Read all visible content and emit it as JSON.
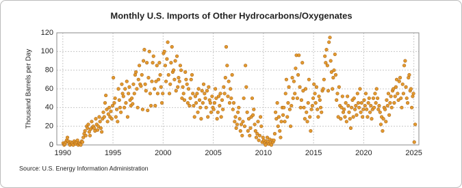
{
  "chart_data": {
    "type": "scatter",
    "title": "Monthly U.S. Imports of Other Hydrocarbons/Oxygenates",
    "ylabel": "Thousand Barrels per Day",
    "source": "Source: U.S. Energy Information Administration",
    "color": "#e39a2f",
    "edge_color": "#a8651a",
    "grid": true,
    "xlim": [
      1989.4,
      2025.5
    ],
    "ylim": [
      0,
      120
    ],
    "xticks": [
      1990,
      1995,
      2000,
      2005,
      2010,
      2015,
      2020,
      2025
    ],
    "yticks": [
      0,
      20,
      40,
      60,
      80,
      100,
      120
    ],
    "x": [
      1990.04,
      1990.13,
      1990.21,
      1990.29,
      1990.38,
      1990.46,
      1990.54,
      1990.63,
      1990.71,
      1990.79,
      1990.88,
      1990.96,
      1991.04,
      1991.13,
      1991.21,
      1991.29,
      1991.38,
      1991.46,
      1991.54,
      1991.63,
      1991.71,
      1991.79,
      1991.88,
      1991.96,
      1992.04,
      1992.13,
      1992.21,
      1992.29,
      1992.38,
      1992.46,
      1992.54,
      1992.63,
      1992.71,
      1992.79,
      1992.88,
      1992.96,
      1993.04,
      1993.13,
      1993.21,
      1993.29,
      1993.38,
      1993.46,
      1993.54,
      1993.63,
      1993.71,
      1993.79,
      1993.88,
      1993.96,
      1994.04,
      1994.13,
      1994.21,
      1994.29,
      1994.38,
      1994.46,
      1994.54,
      1994.63,
      1994.71,
      1994.79,
      1994.88,
      1994.96,
      1995.04,
      1995.13,
      1995.21,
      1995.29,
      1995.38,
      1995.46,
      1995.54,
      1995.63,
      1995.71,
      1995.79,
      1995.88,
      1995.96,
      1996.04,
      1996.13,
      1996.21,
      1996.29,
      1996.38,
      1996.46,
      1996.54,
      1996.63,
      1996.71,
      1996.79,
      1996.88,
      1996.96,
      1997.04,
      1997.13,
      1997.21,
      1997.29,
      1997.38,
      1997.46,
      1997.54,
      1997.63,
      1997.71,
      1997.79,
      1997.88,
      1997.96,
      1998.04,
      1998.13,
      1998.21,
      1998.29,
      1998.38,
      1998.46,
      1998.54,
      1998.63,
      1998.71,
      1998.79,
      1998.88,
      1998.96,
      1999.04,
      1999.13,
      1999.21,
      1999.29,
      1999.38,
      1999.46,
      1999.54,
      1999.63,
      1999.71,
      1999.79,
      1999.88,
      1999.96,
      2000.04,
      2000.13,
      2000.21,
      2000.29,
      2000.38,
      2000.46,
      2000.54,
      2000.63,
      2000.71,
      2000.79,
      2000.88,
      2000.96,
      2001.04,
      2001.13,
      2001.21,
      2001.29,
      2001.38,
      2001.46,
      2001.54,
      2001.63,
      2001.71,
      2001.79,
      2001.88,
      2001.96,
      2002.04,
      2002.13,
      2002.21,
      2002.29,
      2002.38,
      2002.46,
      2002.54,
      2002.63,
      2002.71,
      2002.79,
      2002.88,
      2002.96,
      2003.04,
      2003.13,
      2003.21,
      2003.29,
      2003.38,
      2003.46,
      2003.54,
      2003.63,
      2003.71,
      2003.79,
      2003.88,
      2003.96,
      2004.04,
      2004.13,
      2004.21,
      2004.29,
      2004.38,
      2004.46,
      2004.54,
      2004.63,
      2004.71,
      2004.79,
      2004.88,
      2004.96,
      2005.04,
      2005.13,
      2005.21,
      2005.29,
      2005.38,
      2005.46,
      2005.54,
      2005.63,
      2005.71,
      2005.79,
      2005.88,
      2005.96,
      2006.04,
      2006.13,
      2006.21,
      2006.29,
      2006.38,
      2006.46,
      2006.54,
      2006.63,
      2006.71,
      2006.79,
      2006.88,
      2006.96,
      2007.04,
      2007.13,
      2007.21,
      2007.29,
      2007.38,
      2007.46,
      2007.54,
      2007.63,
      2007.71,
      2007.79,
      2007.88,
      2007.96,
      2008.04,
      2008.13,
      2008.21,
      2008.29,
      2008.38,
      2008.46,
      2008.54,
      2008.63,
      2008.71,
      2008.79,
      2008.88,
      2008.96,
      2009.04,
      2009.13,
      2009.21,
      2009.29,
      2009.38,
      2009.46,
      2009.54,
      2009.63,
      2009.71,
      2009.79,
      2009.88,
      2009.96,
      2010.04,
      2010.13,
      2010.21,
      2010.29,
      2010.38,
      2010.46,
      2010.54,
      2010.63,
      2010.71,
      2010.79,
      2010.88,
      2010.96,
      2011.04,
      2011.13,
      2011.21,
      2011.29,
      2011.38,
      2011.46,
      2011.54,
      2011.63,
      2011.71,
      2011.79,
      2011.88,
      2011.96,
      2012.04,
      2012.13,
      2012.21,
      2012.29,
      2012.38,
      2012.46,
      2012.54,
      2012.63,
      2012.71,
      2012.79,
      2012.88,
      2012.96,
      2013.04,
      2013.13,
      2013.21,
      2013.29,
      2013.38,
      2013.46,
      2013.54,
      2013.63,
      2013.71,
      2013.79,
      2013.88,
      2013.96,
      2014.04,
      2014.13,
      2014.21,
      2014.29,
      2014.38,
      2014.46,
      2014.54,
      2014.63,
      2014.71,
      2014.79,
      2014.88,
      2014.96,
      2015.04,
      2015.13,
      2015.21,
      2015.29,
      2015.38,
      2015.46,
      2015.54,
      2015.63,
      2015.71,
      2015.79,
      2015.88,
      2015.96,
      2016.04,
      2016.13,
      2016.21,
      2016.29,
      2016.38,
      2016.46,
      2016.54,
      2016.63,
      2016.71,
      2016.79,
      2016.88,
      2016.96,
      2017.04,
      2017.13,
      2017.21,
      2017.29,
      2017.38,
      2017.46,
      2017.54,
      2017.63,
      2017.71,
      2017.79,
      2017.88,
      2017.96,
      2018.04,
      2018.13,
      2018.21,
      2018.29,
      2018.38,
      2018.46,
      2018.54,
      2018.63,
      2018.71,
      2018.79,
      2018.88,
      2018.96,
      2019.04,
      2019.13,
      2019.21,
      2019.29,
      2019.38,
      2019.46,
      2019.54,
      2019.63,
      2019.71,
      2019.79,
      2019.88,
      2019.96,
      2020.04,
      2020.13,
      2020.21,
      2020.29,
      2020.38,
      2020.46,
      2020.54,
      2020.63,
      2020.71,
      2020.79,
      2020.88,
      2020.96,
      2021.04,
      2021.13,
      2021.21,
      2021.29,
      2021.38,
      2021.46,
      2021.54,
      2021.63,
      2021.71,
      2021.79,
      2021.88,
      2021.96,
      2022.04,
      2022.13,
      2022.21,
      2022.29,
      2022.38,
      2022.46,
      2022.54,
      2022.63,
      2022.71,
      2022.79,
      2022.88,
      2022.96,
      2023.04,
      2023.13,
      2023.21,
      2023.29,
      2023.38,
      2023.46,
      2023.54,
      2023.63,
      2023.71,
      2023.79,
      2023.88,
      2023.96,
      2024.04,
      2024.13,
      2024.21,
      2024.29,
      2024.38,
      2024.46,
      2024.54,
      2024.63,
      2024.71,
      2024.79,
      2024.88,
      2024.96,
      2025.04,
      2025.13
    ],
    "values": [
      2,
      0,
      1,
      3,
      5,
      8,
      4,
      2,
      0,
      3,
      1,
      2,
      0,
      4,
      2,
      1,
      3,
      5,
      0,
      2,
      1,
      0,
      4,
      3,
      8,
      12,
      15,
      10,
      20,
      18,
      22,
      14,
      10,
      17,
      25,
      19,
      20,
      18,
      15,
      28,
      22,
      16,
      20,
      30,
      25,
      18,
      14,
      28,
      35,
      30,
      45,
      53,
      38,
      25,
      33,
      40,
      30,
      36,
      28,
      42,
      72,
      45,
      50,
      30,
      38,
      25,
      60,
      48,
      40,
      35,
      65,
      55,
      52,
      40,
      60,
      45,
      68,
      30,
      55,
      62,
      48,
      42,
      50,
      44,
      65,
      55,
      75,
      78,
      60,
      40,
      70,
      85,
      65,
      63,
      75,
      38,
      90,
      102,
      65,
      58,
      88,
      37,
      72,
      100,
      55,
      42,
      68,
      88,
      95,
      60,
      42,
      68,
      85,
      55,
      70,
      88,
      75,
      62,
      45,
      55,
      98,
      100,
      85,
      68,
      92,
      110,
      75,
      55,
      65,
      88,
      105,
      78,
      80,
      70,
      90,
      58,
      95,
      62,
      72,
      68,
      85,
      80,
      50,
      62,
      55,
      48,
      78,
      70,
      65,
      45,
      60,
      42,
      50,
      70,
      75,
      55,
      42,
      30,
      52,
      45,
      55,
      35,
      60,
      48,
      40,
      28,
      58,
      45,
      65,
      55,
      50,
      40,
      58,
      30,
      62,
      48,
      45,
      35,
      52,
      40,
      38,
      45,
      60,
      50,
      28,
      35,
      52,
      42,
      55,
      30,
      48,
      38,
      62,
      55,
      72,
      105,
      85,
      52,
      68,
      45,
      60,
      50,
      75,
      38,
      45,
      25,
      30,
      18,
      22,
      35,
      40,
      28,
      15,
      22,
      10,
      25,
      50,
      20,
      85,
      62,
      35,
      15,
      28,
      10,
      18,
      30,
      50,
      32,
      38,
      22,
      15,
      8,
      12,
      25,
      5,
      10,
      30,
      20,
      3,
      8,
      5,
      2,
      0,
      4,
      8,
      3,
      1,
      6,
      2,
      0,
      5,
      3,
      5,
      12,
      35,
      28,
      45,
      20,
      30,
      15,
      8,
      25,
      40,
      32,
      40,
      25,
      55,
      70,
      30,
      45,
      62,
      38,
      20,
      42,
      72,
      50,
      68,
      55,
      82,
      96,
      50,
      75,
      96,
      62,
      40,
      48,
      88,
      58,
      40,
      28,
      60,
      35,
      25,
      45,
      70,
      30,
      15,
      38,
      42,
      50,
      65,
      55,
      45,
      62,
      38,
      30,
      52,
      48,
      40,
      35,
      58,
      60,
      70,
      95,
      88,
      102,
      85,
      58,
      110,
      115,
      90,
      78,
      60,
      72,
      80,
      97,
      75,
      48,
      55,
      30,
      62,
      42,
      28,
      40,
      52,
      35,
      38,
      30,
      45,
      25,
      52,
      42,
      35,
      28,
      18,
      40,
      48,
      30,
      50,
      38,
      42,
      32,
      55,
      45,
      40,
      60,
      35,
      45,
      30,
      38,
      48,
      42,
      55,
      38,
      30,
      45,
      50,
      35,
      42,
      28,
      38,
      50,
      40,
      55,
      45,
      60,
      50,
      38,
      42,
      35,
      22,
      30,
      15,
      28,
      40,
      38,
      25,
      48,
      42,
      55,
      32,
      45,
      52,
      40,
      58,
      60,
      45,
      52,
      62,
      70,
      55,
      48,
      68,
      72,
      50,
      40,
      65,
      55,
      85,
      90,
      62,
      50,
      45,
      72,
      75,
      58,
      60,
      40,
      52,
      55,
      3,
      22
    ]
  }
}
